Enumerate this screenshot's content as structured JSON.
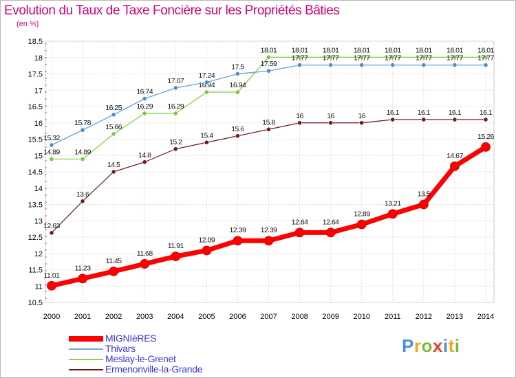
{
  "title": "Evolution du Taux de Taxe Foncière sur les Propriétés Bâties",
  "subtitle": "(en %)",
  "logo": {
    "text": "Proxiti",
    "letters": [
      {
        "ch": "P",
        "color": "#4a90d9"
      },
      {
        "ch": "r",
        "color": "#f2a91e"
      },
      {
        "ch": "o",
        "color": "#78b943"
      },
      {
        "ch": "x",
        "color": "#e8412c"
      },
      {
        "ch": "i",
        "color": "#4a90d9"
      },
      {
        "ch": "t",
        "color": "#f2a91e"
      },
      {
        "ch": "i",
        "color": "#78b943"
      }
    ]
  },
  "chart_data": {
    "type": "line",
    "title": "Evolution du Taux de Taxe Foncière sur les Propriétés Bâties",
    "ylabel": "(en %)",
    "xlabel": "",
    "ylim": [
      10.5,
      18.5
    ],
    "yticks": [
      "10.5",
      "11",
      "11.5",
      "12",
      "12.5",
      "13",
      "13.5",
      "14",
      "14.5",
      "15",
      "15.5",
      "16",
      "16.5",
      "17",
      "17.5",
      "18",
      "18.5"
    ],
    "categories": [
      "2000",
      "2001",
      "2002",
      "2003",
      "2004",
      "2005",
      "2006",
      "2007",
      "2008",
      "2009",
      "2010",
      "2011",
      "2012",
      "2013",
      "2014"
    ],
    "grid": true,
    "series": [
      {
        "name": "Ermenonville-la-Grande",
        "color": "#6b1a1a",
        "marker": "#6b1a1a",
        "width": 1.2,
        "values": [
          12.63,
          13.6,
          14.5,
          14.8,
          15.2,
          15.4,
          15.6,
          15.8,
          16,
          16,
          16,
          16.1,
          16.1,
          16.1,
          16.1
        ],
        "labels": [
          "12.63",
          "13.6",
          "14.5",
          "14.8",
          "15.2",
          "15.4",
          "15.6",
          "15.8",
          "16",
          "16",
          "16",
          "16.1",
          "16.1",
          "16.1",
          "16.1"
        ]
      },
      {
        "name": "Meslay-le-Grenet",
        "color": "#8fd14f",
        "marker": "#7cc63a",
        "width": 1.4,
        "values": [
          14.89,
          14.89,
          15.66,
          16.29,
          16.29,
          16.94,
          16.94,
          18.01,
          18.01,
          18.01,
          18.01,
          18.01,
          18.01,
          18.01,
          18.01
        ],
        "labels": [
          "14.89",
          "14.89",
          "15.66",
          "16.29",
          "16.29",
          "16.94",
          "16.94",
          "18.01",
          "18.01",
          "18.01",
          "18.01",
          "18.01",
          "18.01",
          "18.01",
          "18.01"
        ]
      },
      {
        "name": "Thivars",
        "color": "#6fa6d6",
        "marker": "#4d8cc8",
        "width": 1.4,
        "values": [
          15.32,
          15.78,
          16.25,
          16.74,
          17.07,
          17.24,
          17.5,
          17.59,
          17.77,
          17.77,
          17.77,
          17.77,
          17.77,
          17.77,
          17.77
        ],
        "labels": [
          "15.32",
          "15.78",
          "16.25",
          "16.74",
          "17.07",
          "17.24",
          "17.5",
          "17.59",
          "17.77",
          "17.77",
          "17.77",
          "17.77",
          "17.77",
          "17.77",
          "17.77"
        ]
      },
      {
        "name": "MIGNIèRES",
        "color": "#ff0000",
        "marker": "#ff0000",
        "width": 7,
        "values": [
          11.01,
          11.23,
          11.45,
          11.68,
          11.91,
          12.09,
          12.39,
          12.39,
          12.64,
          12.64,
          12.89,
          13.21,
          13.5,
          14.67,
          15.26
        ],
        "labels": [
          "11.01",
          "11.23",
          "11.45",
          "11.68",
          "11.91",
          "12.09",
          "12.39",
          "12.39",
          "12.64",
          "12.64",
          "12.89",
          "13.21",
          "13.5",
          "14.67",
          "15.26"
        ]
      }
    ],
    "legend": [
      {
        "name": "MIGNIèRES",
        "color": "#ff0000",
        "thick": true
      },
      {
        "name": "Thivars",
        "color": "#6fa6d6",
        "thick": false
      },
      {
        "name": "Meslay-le-Grenet",
        "color": "#8fd14f",
        "thick": false
      },
      {
        "name": "Ermenonville-la-Grande",
        "color": "#6b1a1a",
        "thick": false
      }
    ]
  }
}
